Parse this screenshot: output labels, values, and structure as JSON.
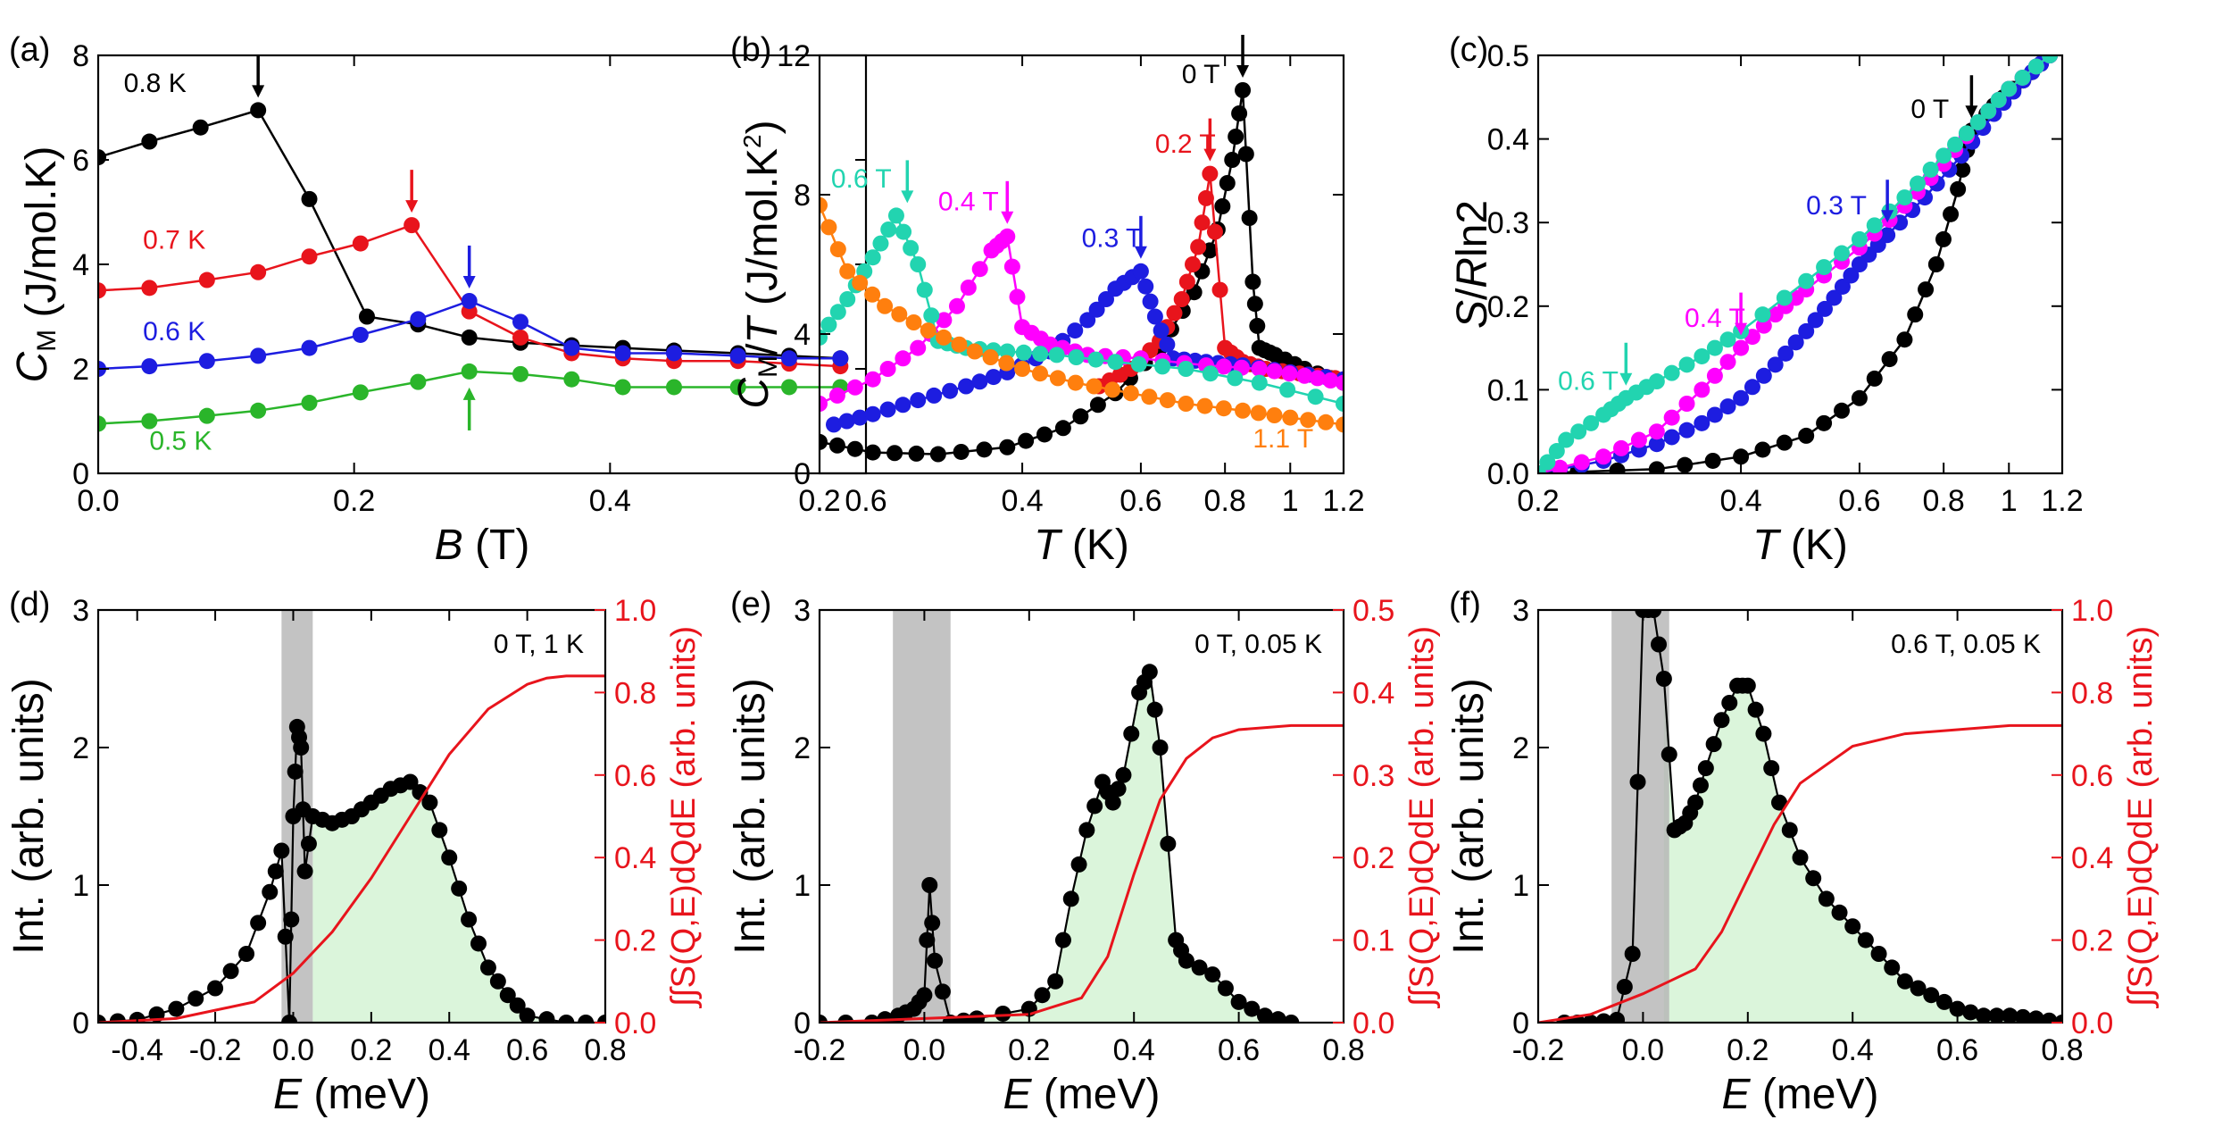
{
  "chart_data": [
    {
      "panel": "(a)",
      "type": "line",
      "xlabel_italic": "B",
      "xlabel_unit": " (T)",
      "ylabel_main": "C",
      "ylabel_sub": "M",
      "ylabel_unit": " (J/mol.K)",
      "xlim": [
        0,
        0.6
      ],
      "ylim": [
        0,
        8
      ],
      "xscale": "linear",
      "xticks": [
        0.0,
        0.2,
        0.4,
        0.6
      ],
      "xtick_labels": [
        "0.0",
        "0.2",
        "0.4",
        "0.6"
      ],
      "yticks": [
        0,
        2,
        4,
        6,
        8
      ],
      "ytick_labels": [
        "0",
        "2",
        "4",
        "6",
        "8"
      ],
      "series": [
        {
          "name": "0.8 K",
          "color": "#000000",
          "x": [
            0.0,
            0.04,
            0.08,
            0.125,
            0.165,
            0.21,
            0.25,
            0.29,
            0.33,
            0.37,
            0.41,
            0.45,
            0.5,
            0.54,
            0.58
          ],
          "y": [
            6.05,
            6.35,
            6.62,
            6.95,
            5.25,
            3.0,
            2.85,
            2.6,
            2.5,
            2.45,
            2.4,
            2.35,
            2.3,
            2.25,
            2.2
          ],
          "arrow_x": 0.125,
          "arrow_y": 6.95,
          "label_x": 0.02,
          "label_y": 7.3
        },
        {
          "name": "0.7 K",
          "color": "#e8141c",
          "x": [
            0.0,
            0.04,
            0.085,
            0.125,
            0.165,
            0.205,
            0.245,
            0.29,
            0.33,
            0.37,
            0.41,
            0.45,
            0.5,
            0.54,
            0.58
          ],
          "y": [
            3.5,
            3.55,
            3.7,
            3.85,
            4.15,
            4.4,
            4.75,
            3.1,
            2.6,
            2.3,
            2.2,
            2.15,
            2.15,
            2.1,
            2.05
          ],
          "arrow_x": 0.245,
          "arrow_y": 4.75,
          "label_x": 0.035,
          "label_y": 4.3
        },
        {
          "name": "0.6 K",
          "color": "#1d1de0",
          "x": [
            0.0,
            0.04,
            0.085,
            0.125,
            0.165,
            0.205,
            0.25,
            0.29,
            0.33,
            0.37,
            0.41,
            0.45,
            0.5,
            0.54,
            0.58
          ],
          "y": [
            2.0,
            2.05,
            2.15,
            2.25,
            2.4,
            2.65,
            2.95,
            3.3,
            2.9,
            2.4,
            2.3,
            2.3,
            2.25,
            2.2,
            2.2
          ],
          "arrow_x": 0.29,
          "arrow_y": 3.3,
          "label_x": 0.035,
          "label_y": 2.55
        },
        {
          "name": "0.5 K",
          "color": "#2ab52a",
          "x": [
            0.0,
            0.04,
            0.085,
            0.125,
            0.165,
            0.205,
            0.25,
            0.29,
            0.33,
            0.37,
            0.41,
            0.45,
            0.5,
            0.54,
            0.58
          ],
          "y": [
            0.95,
            1.0,
            1.1,
            1.2,
            1.35,
            1.55,
            1.75,
            1.95,
            1.9,
            1.8,
            1.65,
            1.65,
            1.65,
            1.65,
            1.65
          ],
          "arrow_x": 0.29,
          "arrow_y": 1.95,
          "label_x": 0.04,
          "label_y": 0.45
        }
      ]
    },
    {
      "panel": "(b)",
      "type": "scatter",
      "xlabel_italic": "T",
      "xlabel_unit": " (K)",
      "ylabel_main": "C",
      "ylabel_sub": "M",
      "ylabel_mid": "/",
      "ylabel_italic2": "T",
      "ylabel_unit": " (J/mol.K",
      "ylabel_sup": "2",
      "ylabel_close": ")",
      "xlim": [
        0.2,
        1.2
      ],
      "ylim": [
        0,
        12
      ],
      "xscale": "log",
      "xticks": [
        0.2,
        0.4,
        0.6,
        0.8,
        1.0,
        1.2
      ],
      "xtick_labels": [
        "0.2",
        "0.4",
        "0.6",
        "0.8",
        "1",
        "1.2"
      ],
      "yticks": [
        0,
        4,
        8,
        12
      ],
      "ytick_labels": [
        "0",
        "4",
        "8",
        "12"
      ],
      "series": [
        {
          "name": "0 T",
          "color": "#000000",
          "x": [
            0.2,
            0.24,
            0.3,
            0.38,
            0.46,
            0.55,
            0.64,
            0.72,
            0.78,
            0.82,
            0.85,
            0.88,
            0.9,
            0.95,
            1.05,
            1.2
          ],
          "y": [
            0.9,
            0.6,
            0.55,
            0.75,
            1.3,
            2.3,
            3.6,
            5.2,
            7.0,
            9.0,
            11.0,
            5.5,
            3.6,
            3.4,
            3.0,
            2.6
          ],
          "arrow_x": 0.85,
          "arrow_y": 11.0,
          "label_x": 0.69,
          "label_y": 11.2
        },
        {
          "name": "0.2 T",
          "color": "#e8141c",
          "x": [
            0.52,
            0.58,
            0.64,
            0.69,
            0.73,
            0.76,
            0.8,
            0.85,
            0.92,
            1.0,
            1.1,
            1.2
          ],
          "y": [
            2.5,
            3.0,
            3.8,
            5.0,
            6.5,
            8.6,
            3.6,
            3.2,
            3.0,
            2.9,
            2.8,
            2.7
          ],
          "arrow_x": 0.76,
          "arrow_y": 8.6,
          "label_x": 0.63,
          "label_y": 9.2
        },
        {
          "name": "0.3 T",
          "color": "#1d1de0",
          "x": [
            0.21,
            0.24,
            0.28,
            0.33,
            0.38,
            0.44,
            0.5,
            0.55,
            0.6,
            0.63,
            0.67,
            0.75,
            0.85,
            1.0,
            1.2
          ],
          "y": [
            1.4,
            1.7,
            2.1,
            2.5,
            2.9,
            3.5,
            4.4,
            5.3,
            5.8,
            4.5,
            3.3,
            3.2,
            3.1,
            2.9,
            2.7
          ],
          "arrow_x": 0.6,
          "arrow_y": 5.8,
          "label_x": 0.49,
          "label_y": 6.5
        },
        {
          "name": "0.4 T",
          "color": "#ff00ff",
          "x": [
            0.2,
            0.24,
            0.28,
            0.32,
            0.36,
            0.38,
            0.4,
            0.44,
            0.5,
            0.6,
            0.75,
            0.9,
            1.05,
            1.2
          ],
          "y": [
            2.0,
            2.7,
            3.6,
            4.8,
            6.4,
            6.8,
            4.2,
            3.7,
            3.4,
            3.3,
            3.1,
            3.0,
            2.8,
            2.6
          ],
          "arrow_x": 0.38,
          "arrow_y": 6.8,
          "label_x": 0.3,
          "label_y": 7.55
        },
        {
          "name": "0.6 T",
          "color": "#22d4b0",
          "x": [
            0.2,
            0.22,
            0.24,
            0.26,
            0.28,
            0.3,
            0.33,
            0.38,
            0.45,
            0.55,
            0.7,
            0.9,
            1.2
          ],
          "y": [
            3.9,
            5.0,
            6.2,
            7.4,
            6.0,
            3.8,
            3.6,
            3.5,
            3.4,
            3.2,
            3.0,
            2.6,
            2.0
          ],
          "arrow_x": 0.27,
          "arrow_y": 7.4,
          "label_x": 0.208,
          "label_y": 8.2
        },
        {
          "name": "1.1 T",
          "color": "#ff7f0e",
          "x": [
            0.2,
            0.22,
            0.25,
            0.29,
            0.34,
            0.4,
            0.48,
            0.58,
            0.7,
            0.85,
            1.0,
            1.2
          ],
          "y": [
            7.7,
            5.8,
            4.8,
            4.1,
            3.5,
            3.0,
            2.6,
            2.3,
            2.0,
            1.8,
            1.6,
            1.4
          ],
          "label_x": 0.88,
          "label_y": 0.75
        }
      ]
    },
    {
      "panel": "(c)",
      "type": "scatter",
      "xlabel_italic": "T",
      "xlabel_unit": " (K)",
      "ylabel_main": "S",
      "ylabel_mid": "/",
      "ylabel_italic2": "R",
      "ylabel_unit": "ln2",
      "xlim": [
        0.2,
        1.2
      ],
      "ylim": [
        0,
        0.5
      ],
      "xscale": "log",
      "xticks": [
        0.2,
        0.4,
        0.6,
        0.8,
        1.0,
        1.2
      ],
      "xtick_labels": [
        "0.2",
        "0.4",
        "0.6",
        "0.8",
        "1",
        "1.2"
      ],
      "yticks": [
        0,
        0.1,
        0.2,
        0.3,
        0.4,
        0.5
      ],
      "ytick_labels": [
        "0.0",
        "0.1",
        "0.2",
        "0.3",
        "0.4",
        "0.5"
      ],
      "series": [
        {
          "name": "0 T",
          "color": "#000000",
          "x": [
            0.2,
            0.3,
            0.4,
            0.5,
            0.6,
            0.7,
            0.78,
            0.84,
            0.88,
            0.95,
            1.05,
            1.15
          ],
          "y": [
            0.0,
            0.005,
            0.02,
            0.045,
            0.09,
            0.16,
            0.25,
            0.34,
            0.41,
            0.44,
            0.47,
            0.5
          ],
          "arrow_x": 0.88,
          "arrow_y": 0.41,
          "label_x": 0.715,
          "label_y": 0.425
        },
        {
          "name": "0.3 T",
          "color": "#1d1de0",
          "x": [
            0.2,
            0.25,
            0.3,
            0.35,
            0.4,
            0.45,
            0.5,
            0.55,
            0.6,
            0.66,
            0.75,
            0.85,
            0.95,
            1.05,
            1.15
          ],
          "y": [
            0.0,
            0.015,
            0.035,
            0.06,
            0.09,
            0.13,
            0.17,
            0.21,
            0.25,
            0.285,
            0.33,
            0.38,
            0.43,
            0.47,
            0.5
          ],
          "arrow_x": 0.66,
          "arrow_y": 0.285,
          "label_x": 0.5,
          "label_y": 0.31
        },
        {
          "name": "0.4 T",
          "color": "#ff00ff",
          "x": [
            0.2,
            0.25,
            0.3,
            0.35,
            0.4,
            0.45,
            0.5,
            0.6,
            0.7,
            0.8,
            0.9,
            1.0,
            1.15
          ],
          "y": [
            0.0,
            0.02,
            0.05,
            0.1,
            0.15,
            0.19,
            0.22,
            0.27,
            0.32,
            0.37,
            0.42,
            0.46,
            0.5
          ],
          "arrow_x": 0.4,
          "arrow_y": 0.15,
          "label_x": 0.33,
          "label_y": 0.175
        },
        {
          "name": "0.6 T",
          "color": "#22d4b0",
          "x": [
            0.2,
            0.22,
            0.25,
            0.27,
            0.3,
            0.35,
            0.4,
            0.5,
            0.6,
            0.7,
            0.8,
            0.9,
            1.0,
            1.15
          ],
          "y": [
            0.0,
            0.04,
            0.07,
            0.09,
            0.11,
            0.14,
            0.17,
            0.23,
            0.28,
            0.33,
            0.38,
            0.42,
            0.46,
            0.5
          ],
          "arrow_x": 0.27,
          "arrow_y": 0.09,
          "label_x": 0.214,
          "label_y": 0.1
        }
      ]
    },
    {
      "panel": "(d)",
      "type": "scatter",
      "annotation": "0 T, 1 K",
      "xlabel_italic": "E",
      "xlabel_unit": " (meV)",
      "ylabel_left": "Int. (arb. units)",
      "ylabel_right": "∫∫S(Q,E)dQdE (arb. units)",
      "right_color": "#e8141c",
      "xlim": [
        -0.5,
        0.8
      ],
      "ylim": [
        0,
        3
      ],
      "ylim_right": [
        0,
        1.0
      ],
      "xticks": [
        -0.4,
        -0.2,
        0.0,
        0.2,
        0.4,
        0.6,
        0.8
      ],
      "xtick_labels": [
        "-0.4",
        "-0.2",
        "0.0",
        "0.2",
        "0.4",
        "0.6",
        "0.8"
      ],
      "yticks": [
        0,
        1,
        2,
        3
      ],
      "ytick_labels": [
        "0",
        "1",
        "2",
        "3"
      ],
      "yticks_right": [
        0,
        0.2,
        0.4,
        0.6,
        0.8,
        1.0
      ],
      "ytick_labels_right": [
        "0.0",
        "0.2",
        "0.4",
        "0.6",
        "0.8",
        "1.0"
      ],
      "shade": [
        -0.03,
        0.05
      ],
      "data_x": [
        -0.5,
        -0.4,
        -0.3,
        -0.2,
        -0.12,
        -0.06,
        -0.03,
        -0.01,
        0.0,
        0.01,
        0.02,
        0.03,
        0.05,
        0.1,
        0.15,
        0.2,
        0.25,
        0.3,
        0.35,
        0.4,
        0.45,
        0.5,
        0.55,
        0.6,
        0.7,
        0.8
      ],
      "data_y": [
        0.0,
        0.02,
        0.1,
        0.25,
        0.5,
        0.95,
        1.25,
        0.0,
        1.5,
        2.15,
        2.0,
        1.1,
        1.5,
        1.45,
        1.5,
        1.6,
        1.7,
        1.75,
        1.6,
        1.2,
        0.75,
        0.4,
        0.2,
        0.05,
        0.0,
        0.0
      ],
      "int_x": [
        -0.5,
        -0.3,
        -0.1,
        0.0,
        0.1,
        0.2,
        0.3,
        0.4,
        0.5,
        0.6,
        0.65,
        0.7,
        0.8
      ],
      "int_y": [
        0.0,
        0.01,
        0.05,
        0.12,
        0.22,
        0.35,
        0.5,
        0.65,
        0.76,
        0.82,
        0.835,
        0.84,
        0.84
      ]
    },
    {
      "panel": "(e)",
      "type": "scatter",
      "annotation": "0 T, 0.05 K",
      "xlabel_italic": "E",
      "xlabel_unit": " (meV)",
      "ylabel_left": "Int. (arb. units)",
      "ylabel_right": "∫∫S(Q,E)dQdE (arb. units)",
      "right_color": "#e8141c",
      "xlim": [
        -0.2,
        0.8
      ],
      "ylim": [
        0,
        3
      ],
      "ylim_right": [
        0,
        0.5
      ],
      "xticks": [
        -0.2,
        0.0,
        0.2,
        0.4,
        0.6,
        0.8
      ],
      "xtick_labels": [
        "-0.2",
        "0.0",
        "0.2",
        "0.4",
        "0.6",
        "0.8"
      ],
      "yticks": [
        0,
        1,
        2,
        3
      ],
      "ytick_labels": [
        "0",
        "1",
        "2",
        "3"
      ],
      "yticks_right": [
        0,
        0.1,
        0.2,
        0.3,
        0.4,
        0.5
      ],
      "ytick_labels_right": [
        "0.0",
        "0.1",
        "0.2",
        "0.3",
        "0.4",
        "0.5"
      ],
      "shade": [
        -0.06,
        0.05
      ],
      "data_x": [
        -0.2,
        -0.1,
        -0.05,
        -0.02,
        0.0,
        0.01,
        0.02,
        0.05,
        0.1,
        0.2,
        0.25,
        0.28,
        0.31,
        0.34,
        0.36,
        0.38,
        0.41,
        0.43,
        0.45,
        0.48,
        0.5,
        0.55,
        0.6,
        0.65,
        0.7
      ],
      "data_y": [
        0.0,
        0.0,
        0.05,
        0.1,
        0.2,
        1.0,
        0.45,
        0.0,
        0.03,
        0.1,
        0.3,
        0.9,
        1.4,
        1.75,
        1.6,
        1.8,
        2.4,
        2.55,
        2.0,
        0.6,
        0.45,
        0.35,
        0.15,
        0.05,
        0.0
      ],
      "int_x": [
        -0.2,
        0.0,
        0.2,
        0.3,
        0.35,
        0.4,
        0.45,
        0.5,
        0.55,
        0.6,
        0.7,
        0.8
      ],
      "int_y": [
        0.0,
        0.005,
        0.01,
        0.03,
        0.08,
        0.18,
        0.27,
        0.32,
        0.345,
        0.355,
        0.36,
        0.36
      ]
    },
    {
      "panel": "(f)",
      "type": "scatter",
      "annotation": "0.6 T, 0.05 K",
      "xlabel_italic": "E",
      "xlabel_unit": " (meV)",
      "ylabel_left": "Int. (arb. units)",
      "ylabel_right": "∫∫S(Q,E)dQdE (arb. units)",
      "right_color": "#e8141c",
      "xlim": [
        -0.2,
        0.8
      ],
      "ylim": [
        0,
        3
      ],
      "ylim_right": [
        0,
        1.0
      ],
      "xticks": [
        -0.2,
        0.0,
        0.2,
        0.4,
        0.6,
        0.8
      ],
      "xtick_labels": [
        "-0.2",
        "0.0",
        "0.2",
        "0.4",
        "0.6",
        "0.8"
      ],
      "yticks": [
        0,
        1,
        2,
        3
      ],
      "ytick_labels": [
        "0",
        "1",
        "2",
        "3"
      ],
      "yticks_right": [
        0,
        0.2,
        0.4,
        0.6,
        0.8,
        1.0
      ],
      "ytick_labels_right": [
        "0.0",
        "0.2",
        "0.4",
        "0.6",
        "0.8",
        "1.0"
      ],
      "shade": [
        -0.06,
        0.05
      ],
      "data_x": [
        -0.15,
        -0.1,
        -0.05,
        -0.02,
        0.0,
        0.02,
        0.04,
        0.06,
        0.08,
        0.1,
        0.12,
        0.15,
        0.18,
        0.2,
        0.23,
        0.26,
        0.3,
        0.35,
        0.4,
        0.45,
        0.5,
        0.55,
        0.6,
        0.65,
        0.7,
        0.75,
        0.8
      ],
      "data_y": [
        0.0,
        0.0,
        0.02,
        0.5,
        3.0,
        3.0,
        2.5,
        1.4,
        1.45,
        1.6,
        1.85,
        2.2,
        2.45,
        2.45,
        2.1,
        1.6,
        1.2,
        0.9,
        0.7,
        0.5,
        0.3,
        0.2,
        0.1,
        0.05,
        0.05,
        0.03,
        0.0
      ],
      "int_x": [
        -0.2,
        -0.1,
        0.0,
        0.05,
        0.1,
        0.15,
        0.2,
        0.25,
        0.3,
        0.4,
        0.5,
        0.6,
        0.7,
        0.8
      ],
      "int_y": [
        0.0,
        0.02,
        0.07,
        0.1,
        0.13,
        0.22,
        0.35,
        0.48,
        0.58,
        0.67,
        0.7,
        0.71,
        0.72,
        0.72
      ]
    }
  ]
}
